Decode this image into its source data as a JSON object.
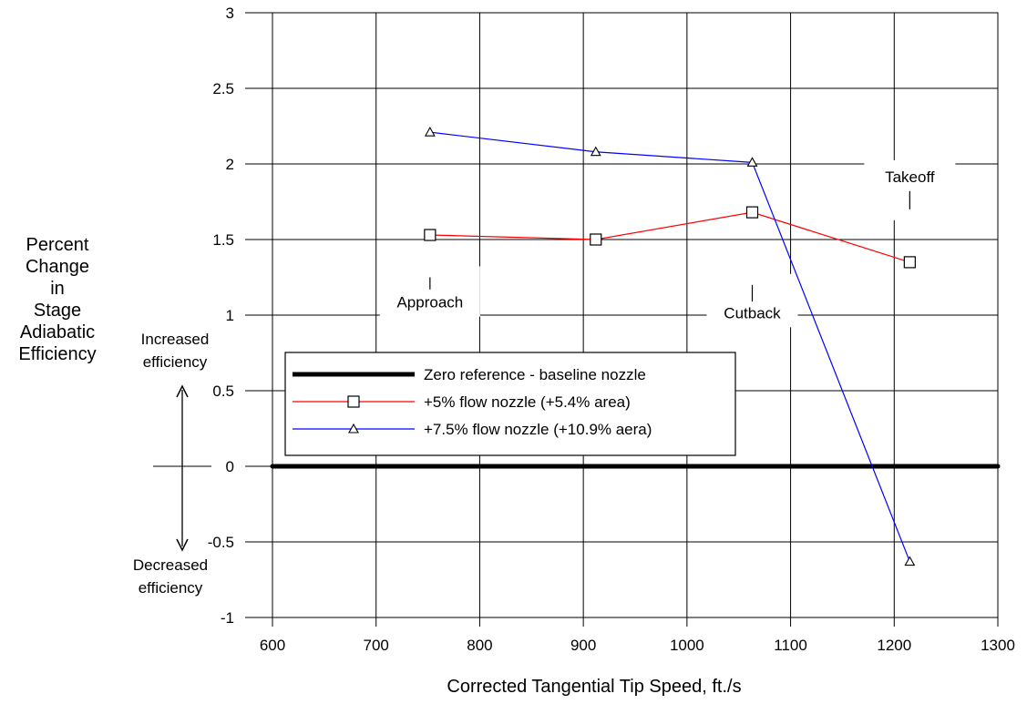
{
  "chart_data": {
    "type": "line",
    "title": "",
    "xlabel": "Corrected Tangential Tip Speed, ft./s",
    "ylabel": [
      "Percent",
      "Change",
      "in",
      "Stage",
      "Adiabatic",
      "Efficiency"
    ],
    "xlim": [
      600,
      1300
    ],
    "ylim": [
      -1,
      3
    ],
    "xticks": [
      600,
      700,
      800,
      900,
      1000,
      1100,
      1200,
      1300
    ],
    "xtick_labels": [
      "600",
      "700",
      "800",
      "900",
      "1000",
      "1100",
      "1200",
      "1300"
    ],
    "yticks": [
      -1,
      -0.5,
      0,
      0.5,
      1,
      1.5,
      2,
      2.5,
      3
    ],
    "ytick_labels": [
      "-1",
      "-0.5",
      "0",
      "0.5",
      "1",
      "1.5",
      "2",
      "2.5",
      "3"
    ],
    "grid": true,
    "legend_position": "middle-left",
    "series": [
      {
        "name": "Zero reference - baseline nozzle",
        "color": "#000000",
        "marker": "none",
        "x": [
          600,
          1300
        ],
        "y": [
          0,
          0
        ]
      },
      {
        "name": "+5% flow nozzle (+5.4% area)",
        "color": "#ff0000",
        "marker": "square",
        "x": [
          752,
          912,
          1063,
          1215
        ],
        "y": [
          1.53,
          1.5,
          1.68,
          1.35
        ]
      },
      {
        "name": "+7.5% flow nozzle (+10.9% aera)",
        "color": "#0000ff",
        "marker": "triangle",
        "x": [
          752,
          912,
          1063,
          1215
        ],
        "y": [
          2.21,
          2.08,
          2.01,
          -0.63
        ]
      }
    ],
    "annotations": [
      {
        "text": "Approach",
        "x": 752,
        "tick_y": [
          1.17,
          1.25
        ],
        "label_y": 1.05
      },
      {
        "text": "Cutback",
        "x": 1063,
        "tick_y": [
          1.09,
          1.2
        ],
        "label_y": 0.98
      },
      {
        "text": "Takeoff",
        "x": 1215,
        "tick_y": [
          1.7,
          1.82
        ],
        "label_y": 1.88
      }
    ],
    "side_labels": {
      "increased": [
        "Increased",
        "efficiency"
      ],
      "decreased": [
        "Decreased",
        "efficiency"
      ]
    }
  }
}
